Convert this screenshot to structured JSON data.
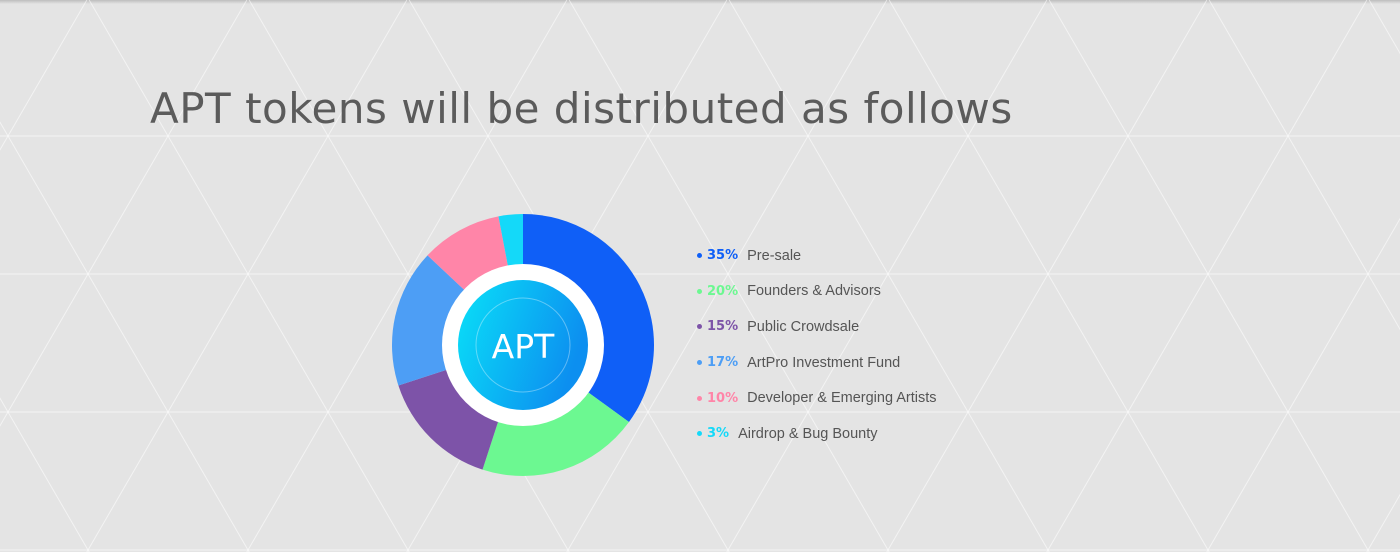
{
  "page": {
    "title": "APT tokens will be distributed as follows"
  },
  "chart_data": {
    "type": "pie",
    "variant": "donut",
    "center_label": "APT",
    "unit": "%",
    "legend_placement": "right",
    "slices": [
      {
        "pct_label": "35%",
        "value": 35,
        "label": "Pre-sale",
        "color": "#0f5ff7"
      },
      {
        "pct_label": "20%",
        "value": 20,
        "label": "Founders & Advisors",
        "color": "#6cf891"
      },
      {
        "pct_label": "15%",
        "value": 15,
        "label": "Public Crowdsale",
        "color": "#7d53a8"
      },
      {
        "pct_label": "17%",
        "value": 17,
        "label": "ArtPro Investment Fund",
        "color": "#4d9ef5"
      },
      {
        "pct_label": "10%",
        "value": 10,
        "label": "Developer & Emerging Artists",
        "color": "#ff85a8"
      },
      {
        "pct_label": "3%",
        "value": 3,
        "label": "Airdrop & Bug Bounty",
        "color": "#14d9f9"
      }
    ],
    "center_gradient": [
      "#0ae1f8",
      "#0c8ff0"
    ]
  }
}
